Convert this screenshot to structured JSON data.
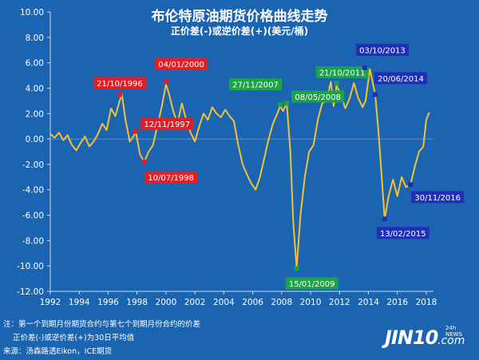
{
  "title": "布伦特原油期货价格曲线走势",
  "subtitle": "正价差(-)或逆价差(+)(美元/桶)",
  "notes": [
    "注：第一个到期月份期货合约与第七个到期月份合约的价差",
    "正价差(-)或逆价差(+)为30日平均值",
    "来源：汤森路透Eikon，ICE期货"
  ],
  "logo": {
    "main": "JIN10",
    "suffix": ".com",
    "badge": "24h NEWS"
  },
  "colors": {
    "background": "#1b64b2",
    "line": "#f2c232",
    "red": "#e21f26",
    "green": "#1ba34a",
    "navy": "#1f2fb6",
    "text": "#ffffff"
  },
  "chart_data": {
    "type": "line",
    "title": "布伦特原油期货价格曲线走势",
    "subtitle": "正价差(-)或逆价差(+)(美元/桶)",
    "xlim": [
      1992,
      2018.5
    ],
    "ylim": [
      -12,
      10
    ],
    "x_ticks": [
      1992,
      1994,
      1996,
      1998,
      2000,
      2002,
      2004,
      2006,
      2008,
      2010,
      2012,
      2014,
      2016,
      2018
    ],
    "y_ticks": [
      {
        "v": 10,
        "label": "10.00"
      },
      {
        "v": 8,
        "label": "8.00"
      },
      {
        "v": 6,
        "label": "6.00"
      },
      {
        "v": 4,
        "label": "4.00"
      },
      {
        "v": 2,
        "label": "2.00"
      },
      {
        "v": 0,
        "label": "0.00"
      },
      {
        "v": -2,
        "label": "-2.00"
      },
      {
        "v": -4,
        "label": "-4.00"
      },
      {
        "v": -6,
        "label": "-6.00"
      },
      {
        "v": -8,
        "label": "-8.00"
      },
      {
        "v": -10,
        "label": "-10.00"
      },
      {
        "v": -12,
        "label": "-12.00"
      }
    ],
    "grid": false,
    "series": [
      {
        "x": [
          1992.0,
          1992.3,
          1992.6,
          1992.9,
          1993.2,
          1993.5,
          1993.8,
          1994.1,
          1994.4,
          1994.7,
          1995.0,
          1995.3,
          1995.6,
          1995.9,
          1996.2,
          1996.5,
          1996.8,
          1996.95,
          1997.2,
          1997.5,
          1997.8,
          1997.9,
          1998.2,
          1998.5,
          1998.8,
          1999.1,
          1999.4,
          1999.7,
          2000.0,
          2000.2,
          2000.5,
          2000.8,
          2001.1,
          2001.4,
          2001.7,
          2002.0,
          2002.3,
          2002.6,
          2002.9,
          2003.2,
          2003.5,
          2003.8,
          2004.1,
          2004.4,
          2004.7,
          2005.0,
          2005.3,
          2005.6,
          2005.9,
          2006.2,
          2006.5,
          2006.8,
          2007.1,
          2007.4,
          2007.7,
          2007.9,
          2008.1,
          2008.35,
          2008.6,
          2008.8,
          2009.04,
          2009.3,
          2009.6,
          2009.9,
          2010.2,
          2010.5,
          2010.8,
          2011.1,
          2011.4,
          2011.6,
          2011.8,
          2012.1,
          2012.4,
          2012.7,
          2013.0,
          2013.3,
          2013.6,
          2013.8,
          2014.1,
          2014.47,
          2014.7,
          2014.95,
          2015.12,
          2015.4,
          2015.7,
          2016.0,
          2016.3,
          2016.6,
          2016.91,
          2017.2,
          2017.5,
          2017.8,
          2018.0,
          2018.2
        ],
        "y": [
          0.4,
          0.1,
          0.5,
          -0.1,
          0.3,
          -0.5,
          -0.9,
          -0.3,
          0.2,
          -0.6,
          -0.2,
          0.4,
          1.2,
          0.7,
          2.4,
          1.8,
          3.0,
          3.5,
          1.5,
          -0.2,
          0.3,
          0.6,
          -1.2,
          -1.8,
          -1.0,
          -0.5,
          1.0,
          2.5,
          4.3,
          3.6,
          2.2,
          1.2,
          2.8,
          1.5,
          0.5,
          -0.2,
          1.0,
          2.0,
          1.5,
          2.5,
          2.0,
          1.7,
          2.3,
          1.8,
          1.4,
          -0.5,
          -2.0,
          -2.8,
          -3.5,
          -4.0,
          -3.0,
          -1.5,
          0.0,
          1.2,
          2.0,
          2.6,
          2.2,
          2.8,
          -1.0,
          -6.5,
          -10.2,
          -6.0,
          -3.0,
          -1.0,
          -0.5,
          1.5,
          2.8,
          3.0,
          4.5,
          2.6,
          4.2,
          3.5,
          2.4,
          3.2,
          4.4,
          3.2,
          2.5,
          3.0,
          5.5,
          3.5,
          0.5,
          -3.5,
          -6.3,
          -4.5,
          -3.2,
          -4.5,
          -3.0,
          -3.8,
          -3.6,
          -2.2,
          -1.0,
          -0.6,
          1.5,
          2.1
        ]
      }
    ],
    "annotations": [
      {
        "label": "21/10/1996",
        "x": 1996.8,
        "y": 3.5,
        "color": "red"
      },
      {
        "label": "12/11/1997",
        "x": 1997.87,
        "y": 0.6,
        "color": "red"
      },
      {
        "label": "10/07/1998",
        "x": 1998.52,
        "y": -1.8,
        "color": "red"
      },
      {
        "label": "04/01/2000",
        "x": 2000.01,
        "y": 4.5,
        "color": "red"
      },
      {
        "label": "27/11/2007",
        "x": 2007.9,
        "y": 2.7,
        "color": "green"
      },
      {
        "label": "08/05/2008",
        "x": 2008.35,
        "y": 2.8,
        "color": "green"
      },
      {
        "label": "15/01/2009",
        "x": 2009.04,
        "y": -10.2,
        "color": "green"
      },
      {
        "label": "21/10/2011",
        "x": 2011.8,
        "y": 4.4,
        "color": "green"
      },
      {
        "label": "03/10/2013",
        "x": 2013.75,
        "y": 5.6,
        "color": "navy"
      },
      {
        "label": "20/06/2014",
        "x": 2014.47,
        "y": 3.5,
        "color": "navy"
      },
      {
        "label": "13/02/2015",
        "x": 2015.12,
        "y": -6.3,
        "color": "navy"
      },
      {
        "label": "30/11/2016",
        "x": 2016.91,
        "y": -3.6,
        "color": "navy"
      }
    ]
  }
}
